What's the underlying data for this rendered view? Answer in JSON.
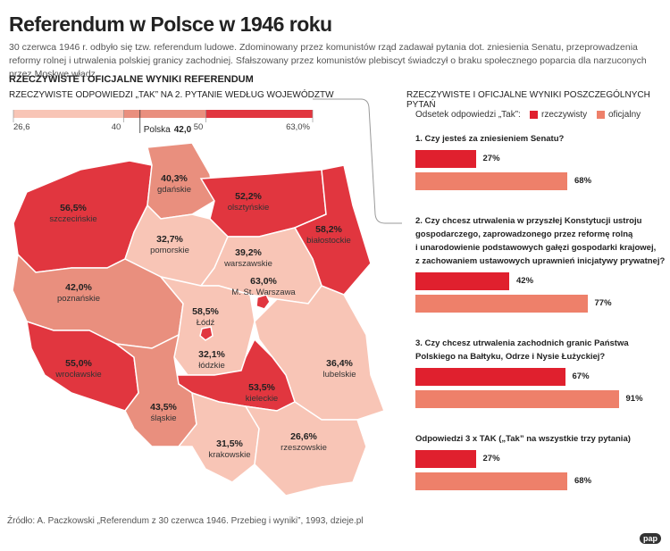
{
  "header": {
    "title": "Referendum w Polsce w 1946 roku",
    "subtitle": "30 czerwca 1946 r. odbyło się tzw. referendum ludowe. Zdominowany przez komunistów rząd zadawał pytania dot. zniesienia Senatu, przeprowadzenia reformy rolnej i utrwalenia polskiej granicy zachodniej. Sfałszowany przez komunistów plebiscyt świadczył o braku społecznego poparcia dla narzuconych przez Moskwę władz.",
    "section": "RZECZYWISTE I OFICJALNE WYNIKI REFERENDUM"
  },
  "chart_data": [
    {
      "type": "map",
      "title": "RZECZYWISTE ODPOWIEDZI „TAK” NA 2. PYTANIE WEDŁUG WOJEWÓDZTW",
      "xlim": [
        26.6,
        63.0
      ],
      "xticks": [
        {
          "value": 26.6,
          "label": "26,6"
        },
        40,
        50,
        {
          "value": 63.0,
          "label": "63,0%"
        }
      ],
      "colors": [
        "#f8c5b6",
        "#e98f7e",
        "#e1363f"
      ],
      "national": {
        "name": "Polska",
        "value": 42.0,
        "value_label": "42,0"
      },
      "categories": [
        "szczecińskie",
        "gdańskie",
        "olsztyńskie",
        "białostockie",
        "pomorskie",
        "warszawskie",
        "M. St. Warszawa",
        "poznańskie",
        "łódzkie",
        "Łódź",
        "lubelskie",
        "wrocławskie",
        "kieleckie",
        "śląskie",
        "krakowskie",
        "rzeszowskie"
      ],
      "values": [
        56.5,
        40.3,
        52.2,
        58.2,
        32.7,
        39.2,
        63.0,
        42.0,
        32.1,
        58.5,
        36.4,
        55.0,
        53.5,
        43.5,
        31.5,
        26.6
      ],
      "value_labels": [
        "56,5%",
        "40,3%",
        "52,2%",
        "58,2%",
        "32,7%",
        "39,2%",
        "63,0%",
        "42,0%",
        "32,1%",
        "58,5%",
        "36,4%",
        "55,0%",
        "53,5%",
        "43,5%",
        "31,5%",
        "26,6%"
      ]
    },
    {
      "type": "bar",
      "title": "RZECZYWISTE I OFICJALNE WYNIKI POSZCZEGÓLNYCH PYTAŃ",
      "legend_title": "Odsetek odpowiedzi „Tak”:",
      "categories": [
        "1. Czy jesteś za zniesieniem Senatu?",
        "2. Czy chcesz utrwalenia w przyszłej Konstytucji ustroju\ngospodarczego, zaprowadzonego przez reformę rolną\ni unarodowienie podstawowych gałęzi gospodarki krajowej,\nz zachowaniem ustawowych uprawnień inicjatywy prywatnej?",
        "3. Czy chcesz utrwalenia zachodnich granic Państwa\nPolskiego na Bałtyku, Odrze i Nysie Łużyckiej?",
        "Odpowiedzi 3 x TAK („Tak” na wszystkie trzy pytania)"
      ],
      "series": [
        {
          "name": "rzeczywisty",
          "color": "#e0202e",
          "values": [
            27,
            42,
            67,
            27
          ],
          "value_labels": [
            "27%",
            "42%",
            "67%",
            "27%"
          ]
        },
        {
          "name": "oficjalny",
          "color": "#ee806a",
          "values": [
            68,
            77,
            91,
            68
          ],
          "value_labels": [
            "68%",
            "77%",
            "91%",
            "68%"
          ]
        }
      ]
    }
  ],
  "footer": {
    "source": "Źródło: A. Paczkowski „Referendum z 30 czerwca 1946. Przebieg i wyniki”, 1993, dzieje.pl",
    "logo": "pap"
  }
}
